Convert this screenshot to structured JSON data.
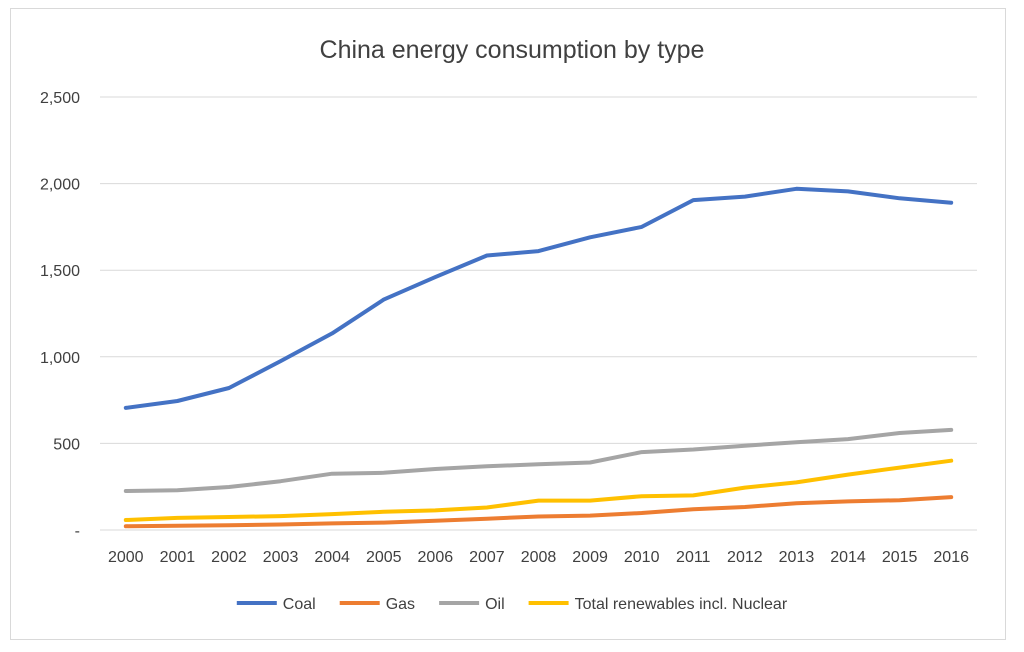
{
  "chart_data": {
    "type": "line",
    "title": "China energy consumption by type",
    "xlabel": "",
    "ylabel": "",
    "categories": [
      "2000",
      "2001",
      "2002",
      "2003",
      "2004",
      "2005",
      "2006",
      "2007",
      "2008",
      "2009",
      "2010",
      "2011",
      "2012",
      "2013",
      "2014",
      "2015",
      "2016"
    ],
    "y_tick_labels": [
      "-",
      "500",
      "1,000",
      "1,500",
      "2,000",
      "2,500"
    ],
    "y_ticks": [
      0,
      500,
      1000,
      1500,
      2000,
      2500
    ],
    "ylim": [
      0,
      2500
    ],
    "grid": true,
    "legend_position": "bottom",
    "series": [
      {
        "name": "Coal",
        "color": "#4472C4",
        "values": [
          705,
          745,
          820,
          975,
          1135,
          1330,
          1460,
          1585,
          1610,
          1690,
          1750,
          1905,
          1925,
          1970,
          1955,
          1915,
          1890
        ]
      },
      {
        "name": "Gas",
        "color": "#ED7D31",
        "values": [
          22,
          25,
          27,
          32,
          38,
          43,
          53,
          65,
          78,
          83,
          98,
          120,
          133,
          155,
          165,
          172,
          190
        ]
      },
      {
        "name": "Oil",
        "color": "#A5A5A5",
        "values": [
          225,
          230,
          248,
          282,
          325,
          330,
          352,
          368,
          380,
          390,
          450,
          465,
          487,
          507,
          525,
          560,
          578
        ]
      },
      {
        "name": "Total renewables incl. Nuclear",
        "color": "#FFC000",
        "values": [
          58,
          70,
          75,
          80,
          92,
          105,
          113,
          130,
          170,
          170,
          195,
          200,
          245,
          275,
          320,
          360,
          400
        ]
      }
    ]
  }
}
